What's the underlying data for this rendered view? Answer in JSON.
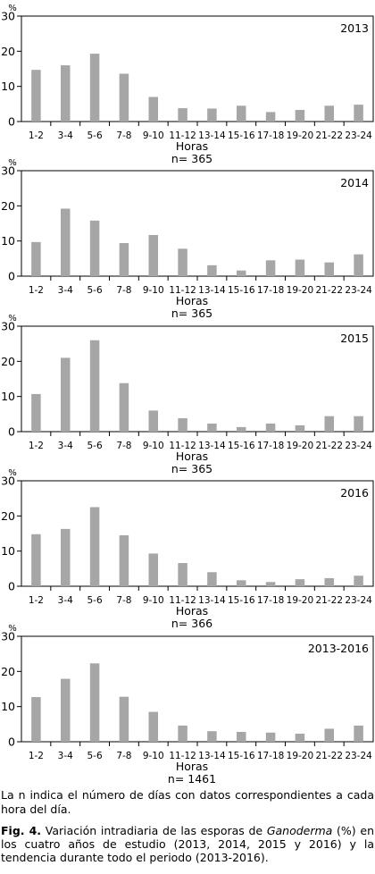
{
  "chart_data": [
    {
      "type": "bar",
      "panel_label": "2013",
      "unit": "%",
      "xlabel": "Horas",
      "n_label": "n= 365",
      "categories": [
        "1-2",
        "3-4",
        "5-6",
        "7-8",
        "9-10",
        "11-12",
        "13-14",
        "15-16",
        "17-18",
        "19-20",
        "21-22",
        "23-24"
      ],
      "values": [
        14.7,
        16.0,
        19.3,
        13.6,
        7.0,
        3.8,
        3.7,
        4.5,
        2.7,
        3.3,
        4.5,
        4.8
      ],
      "ylim": [
        0,
        30
      ],
      "yticks": [
        0,
        10,
        20,
        30
      ],
      "grid": false,
      "bar_color": "#a6a6a6"
    },
    {
      "type": "bar",
      "panel_label": "2014",
      "unit": "%",
      "xlabel": "Horas",
      "n_label": "n= 365",
      "categories": [
        "1-2",
        "3-4",
        "5-6",
        "7-8",
        "9-10",
        "11-12",
        "13-14",
        "15-16",
        "17-18",
        "19-20",
        "21-22",
        "23-24"
      ],
      "values": [
        9.7,
        19.2,
        15.8,
        9.4,
        11.7,
        7.8,
        3.1,
        1.6,
        4.5,
        4.7,
        3.9,
        6.2
      ],
      "ylim": [
        0,
        30
      ],
      "yticks": [
        0,
        10,
        20,
        30
      ],
      "grid": false,
      "bar_color": "#a6a6a6"
    },
    {
      "type": "bar",
      "panel_label": "2015",
      "unit": "%",
      "xlabel": "Horas",
      "n_label": "n= 365",
      "categories": [
        "1-2",
        "3-4",
        "5-6",
        "7-8",
        "9-10",
        "11-12",
        "13-14",
        "15-16",
        "17-18",
        "19-20",
        "21-22",
        "23-24"
      ],
      "values": [
        10.7,
        21.0,
        26.0,
        13.8,
        6.0,
        3.8,
        2.3,
        1.3,
        2.3,
        1.8,
        4.4,
        4.4
      ],
      "ylim": [
        0,
        30
      ],
      "yticks": [
        0,
        10,
        20,
        30
      ],
      "grid": false,
      "bar_color": "#a6a6a6"
    },
    {
      "type": "bar",
      "panel_label": "2016",
      "unit": "%",
      "xlabel": "Horas",
      "n_label": "n= 366",
      "categories": [
        "1-2",
        "3-4",
        "5-6",
        "7-8",
        "9-10",
        "11-12",
        "13-14",
        "15-16",
        "17-18",
        "19-20",
        "21-22",
        "23-24"
      ],
      "values": [
        14.8,
        16.3,
        22.5,
        14.5,
        9.3,
        6.6,
        4.0,
        1.7,
        1.2,
        2.0,
        2.3,
        3.0
      ],
      "ylim": [
        0,
        30
      ],
      "yticks": [
        0,
        10,
        20,
        30
      ],
      "grid": false,
      "bar_color": "#a6a6a6"
    },
    {
      "type": "bar",
      "panel_label": "2013-2016",
      "unit": "%",
      "xlabel": "Horas",
      "n_label": "n= 1461",
      "categories": [
        "1-2",
        "3-4",
        "5-6",
        "7-8",
        "9-10",
        "11-12",
        "13-14",
        "15-16",
        "17-18",
        "19-20",
        "21-22",
        "23-24"
      ],
      "values": [
        12.7,
        17.9,
        22.3,
        12.8,
        8.5,
        4.6,
        3.0,
        2.8,
        2.6,
        2.3,
        3.7,
        4.6
      ],
      "ylim": [
        0,
        30
      ],
      "yticks": [
        0,
        10,
        20,
        30
      ],
      "grid": false,
      "bar_color": "#a6a6a6"
    }
  ],
  "note": "La n indica el número de días con datos correspondientes a cada hora del día.",
  "caption": {
    "label": "Fig. 4.",
    "text_before": " Variación intradiaria de las esporas de ",
    "species": "Ganoderma",
    "text_after": " (%) en los cuatro años de estudio (2013, 2014, 2015 y 2016) y la tendencia durante todo el periodo (2013-2016)."
  }
}
